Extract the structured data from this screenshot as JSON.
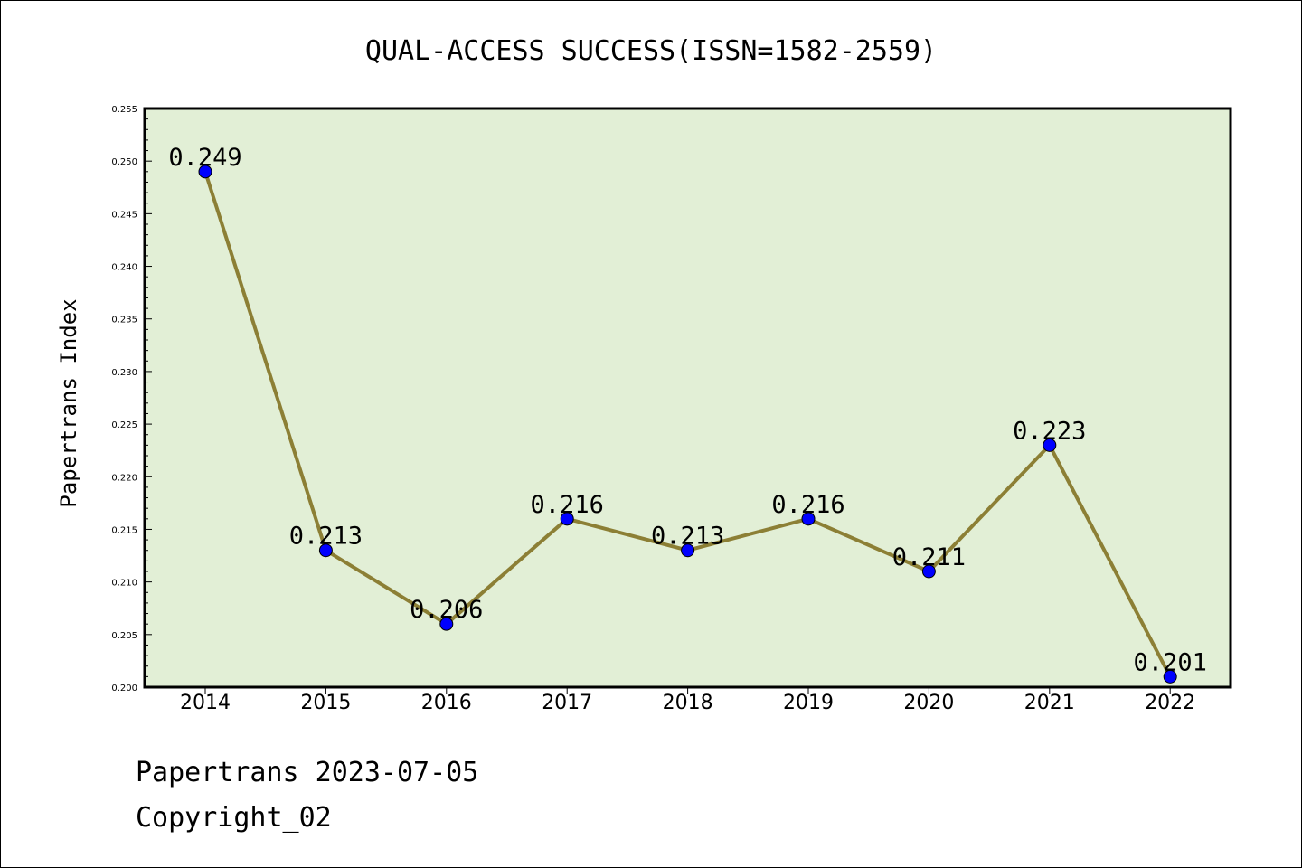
{
  "chart_data": {
    "type": "line",
    "title": "QUAL-ACCESS SUCCESS(ISSN=1582-2559)",
    "ylabel": "Papertrans Index",
    "xlabel": "",
    "categories": [
      "2014",
      "2015",
      "2016",
      "2017",
      "2018",
      "2019",
      "2020",
      "2021",
      "2022"
    ],
    "values": [
      0.249,
      0.213,
      0.206,
      0.216,
      0.213,
      0.216,
      0.211,
      0.223,
      0.201
    ],
    "data_labels": [
      "0.249",
      "0.213",
      "0.206",
      "0.216",
      "0.213",
      "0.216",
      "0.211",
      "0.223",
      "0.201"
    ],
    "ylim": [
      0.2,
      0.255
    ],
    "yticks": [
      "0.200",
      "0.205",
      "0.210",
      "0.215",
      "0.220",
      "0.225",
      "0.230",
      "0.235",
      "0.240",
      "0.245",
      "0.250",
      "0.255"
    ],
    "grid": false,
    "colors": {
      "plot_bg": "#e2efd6",
      "line": "#8c7f35",
      "marker": "#0000ff"
    }
  },
  "footer": {
    "line1": "Papertrans 2023-07-05",
    "line2": "Copyright_02"
  }
}
